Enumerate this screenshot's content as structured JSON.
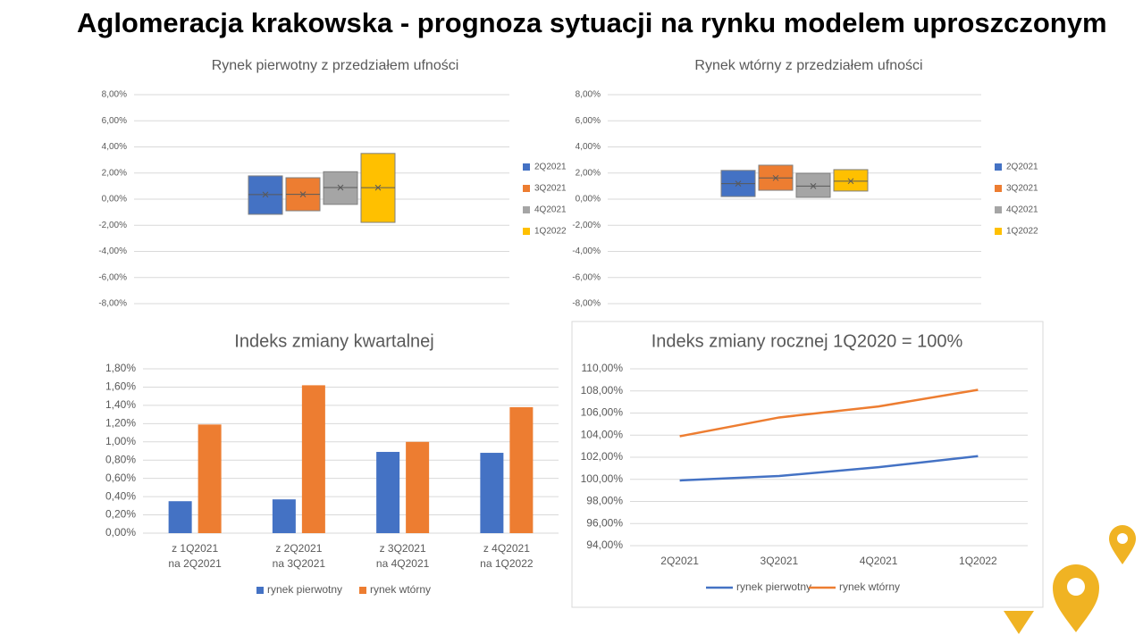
{
  "title": "Aglomeracja krakowska - prognoza sytuacji na rynku modelem uproszczonym",
  "chart_data": [
    {
      "type": "range",
      "title": "Rynek pierwotny z przedziałem ufności",
      "ylim": [
        -8,
        8
      ],
      "yticks": [
        {
          "value": -8,
          "label": "-8,00%"
        },
        {
          "value": -6,
          "label": "-6,00%"
        },
        {
          "value": -4,
          "label": "-4,00%"
        },
        {
          "value": -2,
          "label": "-2,00%"
        },
        {
          "value": 0,
          "label": "0,00%"
        },
        {
          "value": 2,
          "label": "2,00%"
        },
        {
          "value": 4,
          "label": "4,00%"
        },
        {
          "value": 6,
          "label": "6,00%"
        },
        {
          "value": 8,
          "label": "8,00%"
        }
      ],
      "grid": true,
      "legend": "right",
      "series": [
        {
          "name": "2Q2021",
          "color": "#4472c4",
          "low": -1.16,
          "high": 1.78,
          "mean": 0.35
        },
        {
          "name": "3Q2021",
          "color": "#ed7d31",
          "low": -0.89,
          "high": 1.64,
          "mean": 0.37
        },
        {
          "name": "4Q2021",
          "color": "#a5a5a5",
          "low": -0.4,
          "high": 2.1,
          "mean": 0.89
        },
        {
          "name": "1Q2022",
          "color": "#ffc000",
          "low": -1.78,
          "high": 3.5,
          "mean": 0.88
        }
      ]
    },
    {
      "type": "range",
      "title": "Rynek wtórny z przedziałem ufności",
      "ylim": [
        -8,
        8
      ],
      "yticks": [
        {
          "value": -8,
          "label": "-8,00%"
        },
        {
          "value": -6,
          "label": "-6,00%"
        },
        {
          "value": -4,
          "label": "-4,00%"
        },
        {
          "value": -2,
          "label": "-2,00%"
        },
        {
          "value": 0,
          "label": "0,00%"
        },
        {
          "value": 2,
          "label": "2,00%"
        },
        {
          "value": 4,
          "label": "4,00%"
        },
        {
          "value": 6,
          "label": "6,00%"
        },
        {
          "value": 8,
          "label": "8,00%"
        }
      ],
      "grid": true,
      "legend": "right",
      "series": [
        {
          "name": "2Q2021",
          "color": "#4472c4",
          "low": 0.2,
          "high": 2.2,
          "mean": 1.19
        },
        {
          "name": "3Q2021",
          "color": "#ed7d31",
          "low": 0.68,
          "high": 2.6,
          "mean": 1.62
        },
        {
          "name": "4Q2021",
          "color": "#a5a5a5",
          "low": 0.14,
          "high": 1.98,
          "mean": 1.0
        },
        {
          "name": "1Q2022",
          "color": "#ffc000",
          "low": 0.62,
          "high": 2.26,
          "mean": 1.38
        }
      ]
    },
    {
      "type": "bar",
      "title": "Indeks zmiany kwartalnej",
      "categories": [
        [
          "z 1Q2021",
          "na 2Q2021"
        ],
        [
          "z 2Q2021",
          "na 3Q2021"
        ],
        [
          "z 3Q2021",
          "na 4Q2021"
        ],
        [
          "z 4Q2021",
          "na 1Q2022"
        ]
      ],
      "ylim": [
        0,
        1.8
      ],
      "yticks": [
        {
          "value": 0,
          "label": "0,00%"
        },
        {
          "value": 0.2,
          "label": "0,20%"
        },
        {
          "value": 0.4,
          "label": "0,40%"
        },
        {
          "value": 0.6,
          "label": "0,60%"
        },
        {
          "value": 0.8,
          "label": "0,80%"
        },
        {
          "value": 1.0,
          "label": "1,00%"
        },
        {
          "value": 1.2,
          "label": "1,20%"
        },
        {
          "value": 1.4,
          "label": "1,40%"
        },
        {
          "value": 1.6,
          "label": "1,60%"
        },
        {
          "value": 1.8,
          "label": "1,80%"
        }
      ],
      "grid": true,
      "legend": "bottom",
      "series": [
        {
          "name": "rynek pierwotny",
          "color": "#4472c4",
          "values": [
            0.35,
            0.37,
            0.89,
            0.88
          ]
        },
        {
          "name": "rynek wtórny",
          "color": "#ed7d31",
          "values": [
            1.19,
            1.62,
            1.0,
            1.38
          ]
        }
      ]
    },
    {
      "type": "line",
      "title": "Indeks zmiany rocznej 1Q2020 = 100%",
      "categories": [
        "2Q2021",
        "3Q2021",
        "4Q2021",
        "1Q2022"
      ],
      "ylim": [
        94,
        110
      ],
      "yticks": [
        {
          "value": 94,
          "label": "94,00%"
        },
        {
          "value": 96,
          "label": "96,00%"
        },
        {
          "value": 98,
          "label": "98,00%"
        },
        {
          "value": 100,
          "label": "100,00%"
        },
        {
          "value": 102,
          "label": "102,00%"
        },
        {
          "value": 104,
          "label": "104,00%"
        },
        {
          "value": 106,
          "label": "106,00%"
        },
        {
          "value": 108,
          "label": "108,00%"
        },
        {
          "value": 110,
          "label": "110,00%"
        }
      ],
      "grid": true,
      "legend": "bottom",
      "series": [
        {
          "name": "rynek pierwotny",
          "color": "#4472c4",
          "values": [
            99.9,
            100.3,
            101.1,
            102.1
          ]
        },
        {
          "name": "rynek wtórny",
          "color": "#ed7d31",
          "values": [
            103.9,
            105.6,
            106.6,
            108.1
          ]
        }
      ]
    }
  ]
}
